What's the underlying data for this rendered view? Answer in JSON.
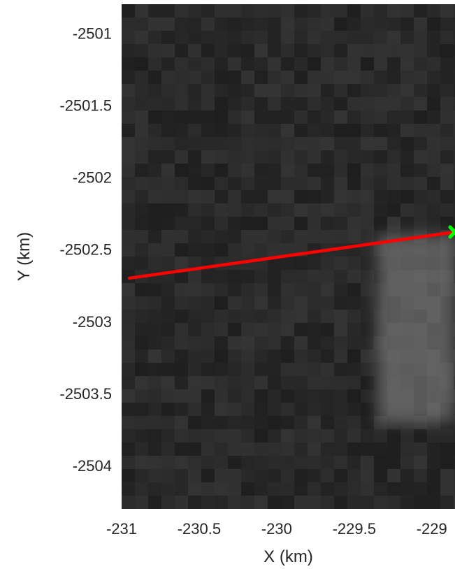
{
  "chart_data": {
    "type": "heatmap",
    "title": "",
    "xlabel": "X (km)",
    "ylabel": "Y (km)",
    "xlim": [
      -231.0,
      -228.85
    ],
    "ylim": [
      -2504.3,
      -2500.8
    ],
    "x_ticks": [
      -231,
      -230.5,
      -230,
      -229.5,
      -229
    ],
    "x_tick_labels": [
      "-231",
      "-230.5",
      "-230",
      "-229.5",
      "-229"
    ],
    "y_ticks": [
      -2501,
      -2501.5,
      -2502,
      -2502.5,
      -2503,
      -2503.5,
      -2504
    ],
    "y_tick_labels": [
      "-2501",
      "-2501.5",
      "-2502",
      "-2502.5",
      "-2503",
      "-2503.5",
      "-2504"
    ],
    "colormap": "gray",
    "background_color": "#2a2a2a",
    "bright_region": {
      "x_range": [
        -229.35,
        -228.85
      ],
      "y_range": [
        -2503.7,
        -2502.4
      ]
    },
    "series": [
      {
        "type": "line",
        "color": "#ff0000",
        "x": [
          -230.95,
          -228.85
        ],
        "y": [
          -2502.7,
          -2502.38
        ]
      },
      {
        "type": "scatter",
        "marker": "x",
        "color": "#00ff00",
        "x": [
          -228.85
        ],
        "y": [
          -2502.38
        ]
      }
    ]
  }
}
